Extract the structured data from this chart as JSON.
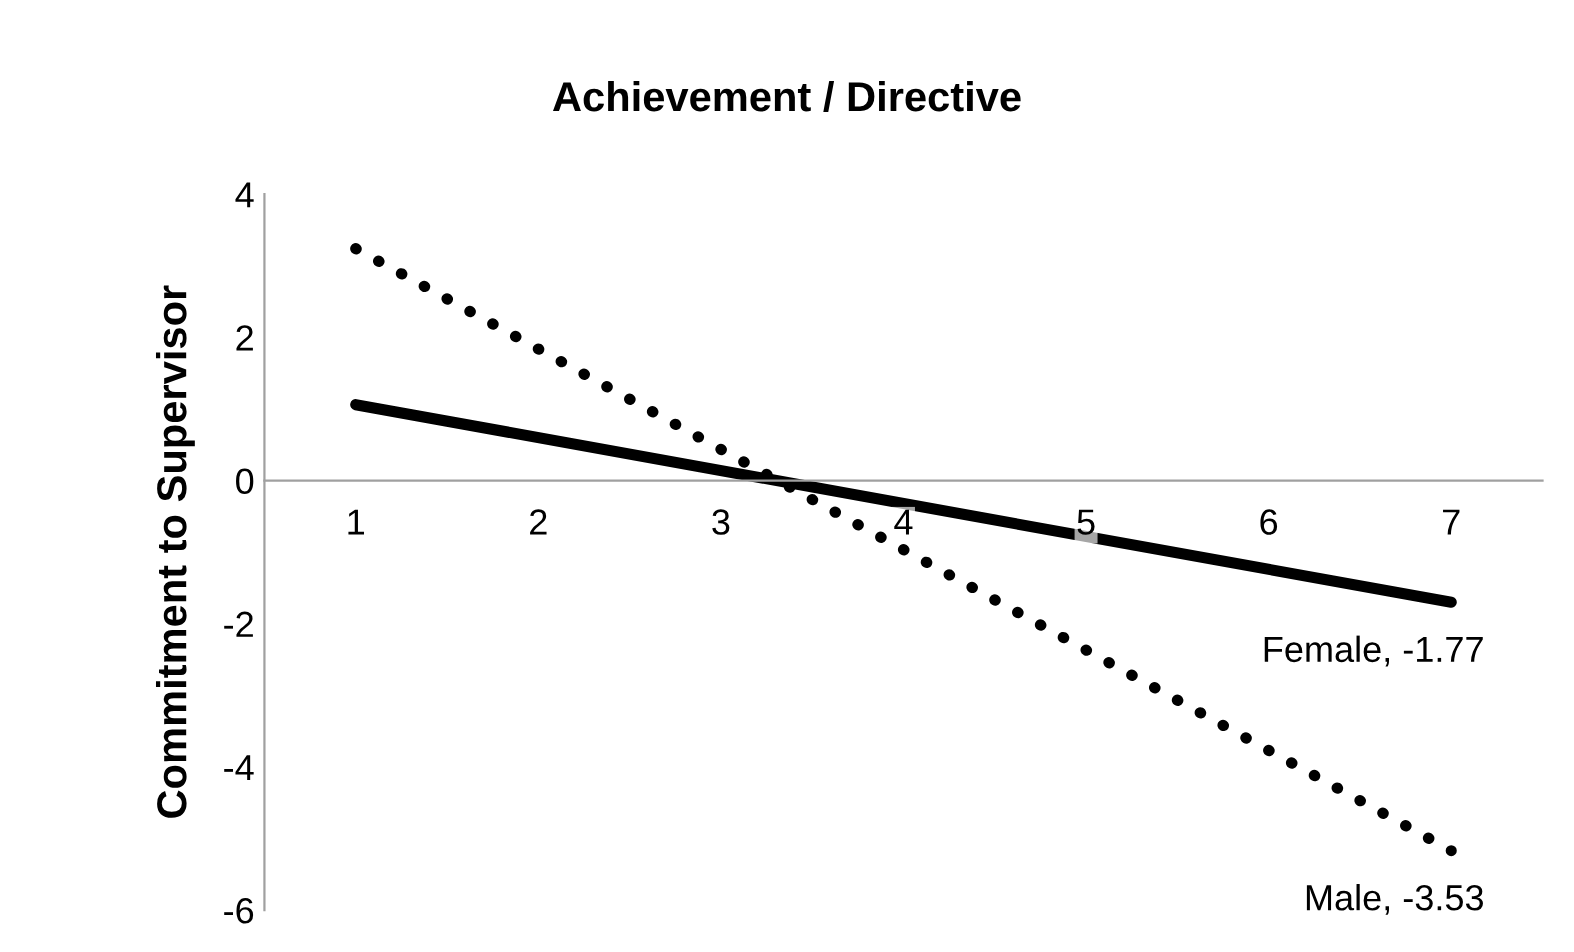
{
  "chart_data": {
    "type": "line",
    "title": "Achievement / Directive",
    "ylabel": "Commitment to Supervisor",
    "x": [
      1,
      7
    ],
    "xlim": [
      0.5,
      7.5
    ],
    "xticks": [
      1,
      2,
      3,
      4,
      5,
      6,
      7
    ],
    "ylim": [
      -6,
      4
    ],
    "yticks": [
      -6,
      -4,
      -2,
      0,
      2,
      4
    ],
    "grid": false,
    "legend": false,
    "series": [
      {
        "color": "#000000",
        "line_style": "solid",
        "values": [
          1.06,
          -1.7
        ]
      },
      {
        "color": "#000000",
        "line_style": "dotted",
        "values": [
          3.24,
          -5.17
        ]
      }
    ],
    "annotations": [
      "Female, -1.77",
      "Male, -3.53"
    ]
  }
}
